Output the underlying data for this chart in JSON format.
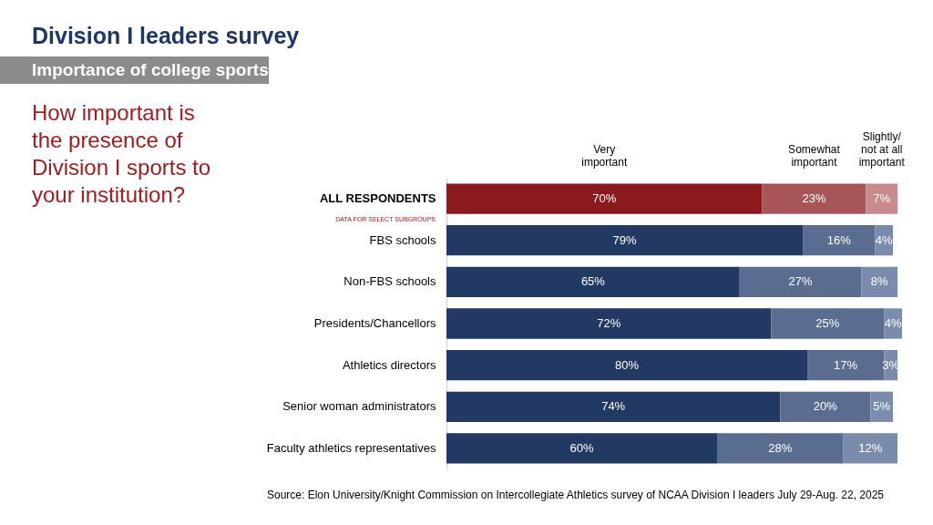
{
  "chart_data": {
    "type": "bar",
    "orientation": "horizontal",
    "stacked": true,
    "title": "Division I leaders survey",
    "subtitle": "Importance of college sports",
    "categories": [
      "ALL RESPONDENTS",
      "FBS schools",
      "Non-FBS schools",
      "Presidents/Chancellors",
      "Athletics directors",
      "Senior woman administrators",
      "Faculty athletics representatives"
    ],
    "tick_labels": "y",
    "grid": false,
    "series": [
      {
        "name": "Very important",
        "colors": [
          "#8b1a1f",
          "#213963",
          "#213963",
          "#213963",
          "#213963",
          "#213963",
          "#213963"
        ],
        "values": [
          70,
          79,
          65,
          72,
          80,
          74,
          60
        ],
        "value_labels": [
          "70%",
          "79%",
          "65%",
          "72%",
          "80%",
          "74%",
          "60%"
        ]
      },
      {
        "name": "Somewhat important",
        "colors": [
          "#a85558",
          "#5a6d91",
          "#5a6d91",
          "#5a6d91",
          "#5a6d91",
          "#5a6d91",
          "#5a6d91"
        ],
        "values": [
          23,
          16,
          27,
          25,
          17,
          20,
          28
        ],
        "value_labels": [
          "23%",
          "16%",
          "27%",
          "25%",
          "17%",
          "20%",
          "28%"
        ]
      },
      {
        "name": "Slightly/ not at all important",
        "colors": [
          "#c98a8c",
          "#7a8bab",
          "#7a8bab",
          "#7a8bab",
          "#7a8bab",
          "#7a8bab",
          "#7a8bab"
        ],
        "values": [
          7,
          4,
          8,
          4,
          3,
          5,
          12
        ],
        "value_labels": [
          "7%",
          "4%",
          "8%",
          "4%",
          "3%",
          "5%",
          "12%"
        ]
      }
    ],
    "annotations": [
      "How important is\nthe presence of\nDivision I sports to\nyour institution?",
      "DATA FOR SELECT SUBGROUPS",
      "Source: Elon University/Knight Commission on Intercollegiate Athletics survey of NCAA Division I leaders July 29-Aug. 22, 2025"
    ]
  }
}
